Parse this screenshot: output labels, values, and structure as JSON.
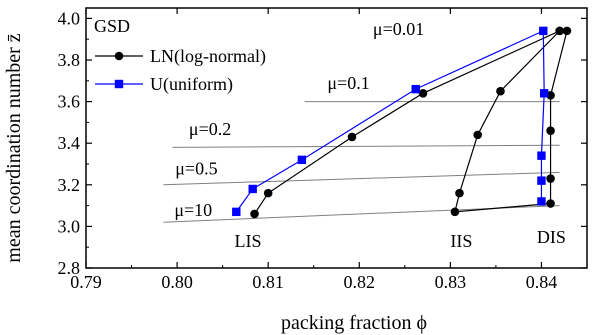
{
  "chart_data": {
    "type": "scatter",
    "xlabel": "packing fraction  ϕ",
    "ylabel": "mean coordination number  z̄",
    "xlim": [
      0.79,
      0.845
    ],
    "ylim": [
      2.8,
      4.05
    ],
    "xticks": [
      0.79,
      0.8,
      0.81,
      0.82,
      0.83,
      0.84
    ],
    "xtick_labels": [
      "0.79",
      "0.80",
      "0.81",
      "0.82",
      "0.83",
      "0.84"
    ],
    "yticks": [
      2.8,
      3.0,
      3.2,
      3.4,
      3.6,
      3.8,
      4.0
    ],
    "ytick_labels": [
      "2.8",
      "3.0",
      "3.2",
      "3.4",
      "3.6",
      "3.8",
      "4.0"
    ],
    "grid": false,
    "legend": {
      "title": "GSD",
      "position": "top-left",
      "entries": [
        "LN(log-normal)",
        "U(uniform)"
      ]
    },
    "colors": {
      "LN": "#000000",
      "U": "#0000ff",
      "guide": "#808080"
    },
    "series": [
      {
        "name": "LN(log-normal)",
        "marker": "circle",
        "color": "#000000",
        "points": [
          {
            "x": 0.8085,
            "y": 3.06
          },
          {
            "x": 0.81,
            "y": 3.16
          },
          {
            "x": 0.8192,
            "y": 3.43
          },
          {
            "x": 0.827,
            "y": 3.64
          },
          {
            "x": 0.842,
            "y": 3.94
          },
          {
            "x": 0.8428,
            "y": 3.94
          },
          {
            "x": 0.841,
            "y": 3.63
          },
          {
            "x": 0.841,
            "y": 3.46
          },
          {
            "x": 0.841,
            "y": 3.23
          },
          {
            "x": 0.841,
            "y": 3.11
          },
          {
            "x": 0.8305,
            "y": 3.07
          },
          {
            "x": 0.831,
            "y": 3.16
          },
          {
            "x": 0.833,
            "y": 3.44
          },
          {
            "x": 0.8355,
            "y": 3.65
          },
          {
            "x": 0.842,
            "y": 3.94
          }
        ]
      },
      {
        "name": "U(uniform)",
        "marker": "square",
        "color": "#0000ff",
        "points": [
          {
            "x": 0.8065,
            "y": 3.07
          },
          {
            "x": 0.8083,
            "y": 3.18
          },
          {
            "x": 0.8137,
            "y": 3.32
          },
          {
            "x": 0.8262,
            "y": 3.66
          },
          {
            "x": 0.8402,
            "y": 3.94
          },
          {
            "x": 0.8403,
            "y": 3.64
          },
          {
            "x": 0.84,
            "y": 3.34
          },
          {
            "x": 0.84,
            "y": 3.22
          },
          {
            "x": 0.84,
            "y": 3.12
          }
        ]
      }
    ],
    "guide_lines": [
      {
        "label": "μ=10",
        "x": [
          0.7985,
          0.842
        ],
        "y": [
          3.02,
          3.1
        ]
      },
      {
        "label": "μ=0.5",
        "x": [
          0.7985,
          0.842
        ],
        "y": [
          3.2,
          3.26
        ]
      },
      {
        "label": "μ=0.2",
        "x": [
          0.7995,
          0.842
        ],
        "y": [
          3.38,
          3.39
        ]
      },
      {
        "label": "μ=0.1",
        "x": [
          0.814,
          0.842
        ],
        "y": [
          3.6,
          3.6
        ]
      }
    ],
    "annotations": [
      {
        "text": "μ=0.01",
        "x": 0.8215,
        "y": 3.92
      },
      {
        "text": "μ=0.1",
        "x": 0.8165,
        "y": 3.66
      },
      {
        "text": "μ=0.2",
        "x": 0.8013,
        "y": 3.44
      },
      {
        "text": "μ=0.5",
        "x": 0.7998,
        "y": 3.25
      },
      {
        "text": "μ=10",
        "x": 0.7997,
        "y": 3.05
      },
      {
        "text": "LIS",
        "x": 0.8063,
        "y": 2.9
      },
      {
        "text": "IIS",
        "x": 0.83,
        "y": 2.9
      },
      {
        "text": "DIS",
        "x": 0.8395,
        "y": 2.92
      }
    ]
  }
}
